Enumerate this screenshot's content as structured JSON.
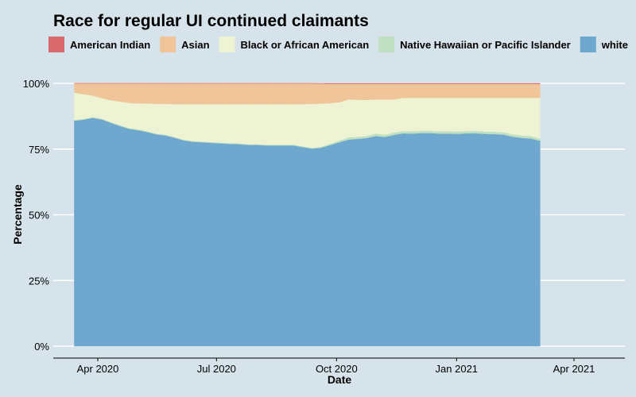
{
  "chart_data": {
    "type": "area",
    "stacked": "percent",
    "title": "Race for regular UI continued claimants",
    "xlabel": "Date",
    "ylabel": "Percentage",
    "x_start": "2020-03-14",
    "x_step_days": 7,
    "x_ticks": [
      {
        "date": "2020-04-01",
        "label": "Apr 2020"
      },
      {
        "date": "2020-07-01",
        "label": "Jul 2020"
      },
      {
        "date": "2020-10-01",
        "label": "Oct 2020"
      },
      {
        "date": "2021-01-01",
        "label": "Jan 2021"
      },
      {
        "date": "2021-04-01",
        "label": "Apr 2021"
      }
    ],
    "y_ticks": [
      {
        "value": 0,
        "label": "0%"
      },
      {
        "value": 25,
        "label": "25%"
      },
      {
        "value": 50,
        "label": "50%"
      },
      {
        "value": 75,
        "label": "75%"
      },
      {
        "value": 100,
        "label": "100%"
      }
    ],
    "ylim": [
      0,
      100
    ],
    "grid": "horizontal",
    "legend_position": "top",
    "series": [
      {
        "name": "white",
        "color": "#6fa8cf",
        "values": [
          85.8,
          86.2,
          86.9,
          86.3,
          85.0,
          83.8,
          82.7,
          82.2,
          81.5,
          80.6,
          80.2,
          79.3,
          78.3,
          77.8,
          77.6,
          77.4,
          77.2,
          77.0,
          76.9,
          76.6,
          76.6,
          76.4,
          76.4,
          76.4,
          76.4,
          75.8,
          75.2,
          75.5,
          76.5,
          77.6,
          78.6,
          78.9,
          79.2,
          80.0,
          79.6,
          80.4,
          81.0,
          80.9,
          81.1,
          81.1,
          80.9,
          80.9,
          80.8,
          81.0,
          81.0,
          80.8,
          80.7,
          80.5,
          79.7,
          79.3,
          79.0,
          78.2
        ]
      },
      {
        "name": "Native Hawaiian or Pacific Islander",
        "color": "#bfe0c1",
        "values": [
          0.3,
          0.3,
          0.3,
          0.3,
          0.3,
          0.3,
          0.3,
          0.3,
          0.3,
          0.3,
          0.3,
          0.3,
          0.3,
          0.3,
          0.3,
          0.3,
          0.3,
          0.3,
          0.3,
          0.3,
          0.3,
          0.3,
          0.3,
          0.3,
          0.3,
          0.3,
          0.3,
          0.4,
          0.5,
          0.7,
          0.8,
          0.8,
          0.8,
          0.9,
          0.9,
          0.9,
          0.9,
          0.9,
          0.9,
          0.9,
          0.9,
          0.9,
          0.9,
          0.9,
          0.9,
          0.9,
          0.9,
          0.9,
          0.9,
          0.9,
          0.9,
          0.9
        ]
      },
      {
        "name": "Black or African American",
        "color": "#eef3d3",
        "values": [
          10.4,
          9.4,
          8.2,
          7.8,
          8.3,
          9.0,
          9.6,
          9.9,
          10.6,
          11.3,
          11.7,
          12.5,
          13.5,
          14.0,
          14.2,
          14.4,
          14.6,
          14.8,
          14.9,
          15.2,
          15.2,
          15.4,
          15.4,
          15.4,
          15.4,
          16.0,
          16.7,
          16.4,
          15.5,
          14.5,
          14.5,
          14.1,
          13.7,
          13.0,
          13.4,
          12.6,
          12.6,
          12.7,
          12.5,
          12.5,
          12.7,
          12.7,
          12.8,
          12.6,
          12.6,
          12.8,
          12.9,
          13.1,
          13.9,
          14.3,
          14.6,
          15.5
        ]
      },
      {
        "name": "Asian",
        "color": "#efc599",
        "values": [
          3.5,
          4.1,
          4.6,
          5.6,
          6.4,
          6.9,
          7.4,
          7.6,
          7.6,
          7.8,
          7.8,
          7.9,
          7.9,
          7.9,
          7.9,
          7.9,
          7.9,
          7.9,
          7.9,
          7.9,
          7.9,
          7.9,
          7.9,
          7.9,
          7.9,
          7.9,
          7.8,
          7.6,
          7.3,
          7.0,
          5.9,
          6.0,
          6.1,
          5.9,
          5.9,
          5.9,
          5.3,
          5.3,
          5.3,
          5.3,
          5.3,
          5.3,
          5.3,
          5.3,
          5.3,
          5.3,
          5.3,
          5.3,
          5.3,
          5.3,
          5.3,
          5.2
        ]
      },
      {
        "name": "American Indian",
        "color": "#d96a6e",
        "values": [
          0.0,
          0.0,
          0.0,
          0.0,
          0.0,
          0.0,
          0.0,
          0.0,
          0.0,
          0.0,
          0.0,
          0.0,
          0.0,
          0.0,
          0.0,
          0.0,
          0.0,
          0.0,
          0.0,
          0.0,
          0.0,
          0.0,
          0.0,
          0.0,
          0.0,
          0.0,
          0.0,
          0.1,
          0.2,
          0.2,
          0.2,
          0.2,
          0.2,
          0.2,
          0.2,
          0.2,
          0.2,
          0.2,
          0.2,
          0.2,
          0.2,
          0.2,
          0.2,
          0.2,
          0.2,
          0.2,
          0.2,
          0.2,
          0.2,
          0.2,
          0.2,
          0.2
        ]
      }
    ],
    "legend": [
      {
        "name": "American Indian",
        "color": "#d96a6e"
      },
      {
        "name": "Asian",
        "color": "#efc599"
      },
      {
        "name": "Black or African American",
        "color": "#eef3d3"
      },
      {
        "name": "Native Hawaiian or Pacific Islander",
        "color": "#bfe0c1"
      },
      {
        "name": "white",
        "color": "#6fa8cf"
      }
    ]
  }
}
